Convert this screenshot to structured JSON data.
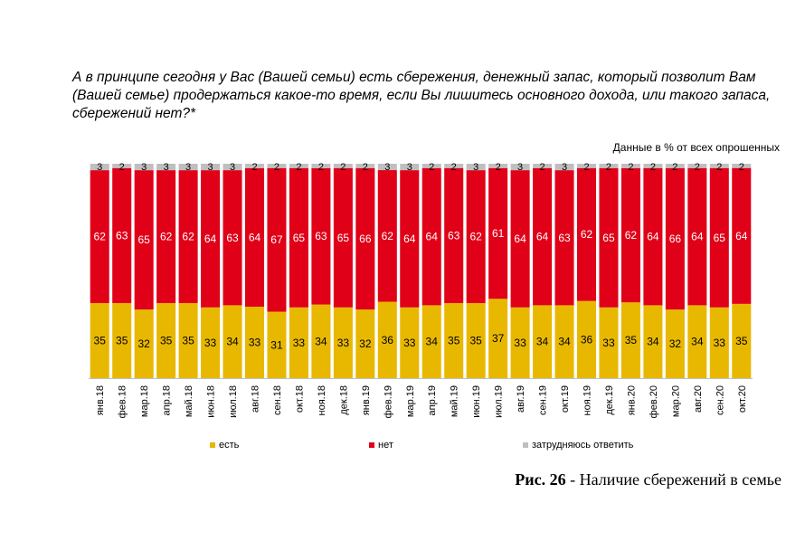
{
  "question": "А в принципе сегодня у Вас (Вашей семьи) есть сбережения, денежный запас, который позволит Вам (Вашей семье) продержаться какое-то время, если Вы лишитесь основного дохода, или такого запаса, сбережений нет?*",
  "note": "Данные в % от всех опрошенных",
  "caption": {
    "label": "Рис. 26",
    "text": " - Наличие сбережений в семье"
  },
  "colors": {
    "yes": "#E8B800",
    "no": "#E00018",
    "hard": "#BFBFBF"
  },
  "chart_data": {
    "type": "bar",
    "stacked": true,
    "normalized_percent": true,
    "categories": [
      "янв.18",
      "фев.18",
      "мар.18",
      "апр.18",
      "май.18",
      "июн.18",
      "июл.18",
      "авг.18",
      "сен.18",
      "окт.18",
      "ноя.18",
      "дек.18",
      "янв.19",
      "фев.19",
      "мар.19",
      "апр.19",
      "май.19",
      "июн.19",
      "июл.19",
      "авг.19",
      "сен.19",
      "окт.19",
      "ноя.19",
      "дек.19",
      "янв.20",
      "фев.20",
      "мар.20",
      "авг.20",
      "сен.20",
      "окт.20"
    ],
    "series": [
      {
        "name": "есть",
        "values": [
          35,
          35,
          32,
          35,
          35,
          33,
          34,
          33,
          31,
          33,
          34,
          33,
          32,
          36,
          33,
          34,
          35,
          35,
          37,
          33,
          34,
          34,
          36,
          33,
          35,
          34,
          32,
          34,
          33,
          35
        ]
      },
      {
        "name": "нет",
        "values": [
          62,
          63,
          65,
          62,
          62,
          64,
          63,
          64,
          67,
          65,
          63,
          65,
          66,
          62,
          64,
          64,
          63,
          62,
          61,
          64,
          64,
          63,
          62,
          65,
          62,
          64,
          66,
          64,
          65,
          64
        ]
      },
      {
        "name": "затрудняюсь ответить",
        "values": [
          3,
          2,
          3,
          3,
          3,
          3,
          3,
          2,
          2,
          2,
          2,
          2,
          2,
          3,
          3,
          2,
          2,
          3,
          2,
          3,
          2,
          3,
          2,
          2,
          2,
          2,
          2,
          2,
          2,
          2
        ]
      }
    ],
    "legend_position": "bottom",
    "grid": false
  }
}
